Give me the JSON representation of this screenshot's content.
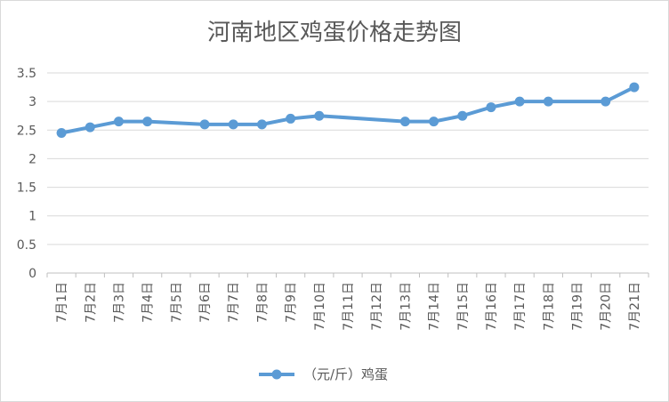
{
  "chart_data": {
    "type": "line",
    "title": "河南地区鸡蛋价格走势图",
    "xlabel": "",
    "ylabel": "",
    "categories": [
      "7月1日",
      "7月2日",
      "7月3日",
      "7月4日",
      "7月5日",
      "7月6日",
      "7月7日",
      "7月8日",
      "7月9日",
      "7月10日",
      "7月11日",
      "7月12日",
      "7月13日",
      "7月14日",
      "7月15日",
      "7月16日",
      "7月17日",
      "7月18日",
      "7月19日",
      "7月20日",
      "7月21日"
    ],
    "series": [
      {
        "name": "（元/斤）鸡蛋",
        "values": [
          2.45,
          2.55,
          2.65,
          2.65,
          null,
          2.6,
          2.6,
          2.6,
          2.7,
          2.75,
          null,
          null,
          2.65,
          2.65,
          2.75,
          2.9,
          3.0,
          3.0,
          null,
          3.0,
          3.25
        ],
        "color": "#5b9bd5"
      }
    ],
    "ylim": [
      0,
      3.5
    ],
    "yticks": [
      "0",
      "0.5",
      "1",
      "1.5",
      "2",
      "2.5",
      "3",
      "3.5"
    ],
    "grid": true,
    "legend": "bottom"
  }
}
